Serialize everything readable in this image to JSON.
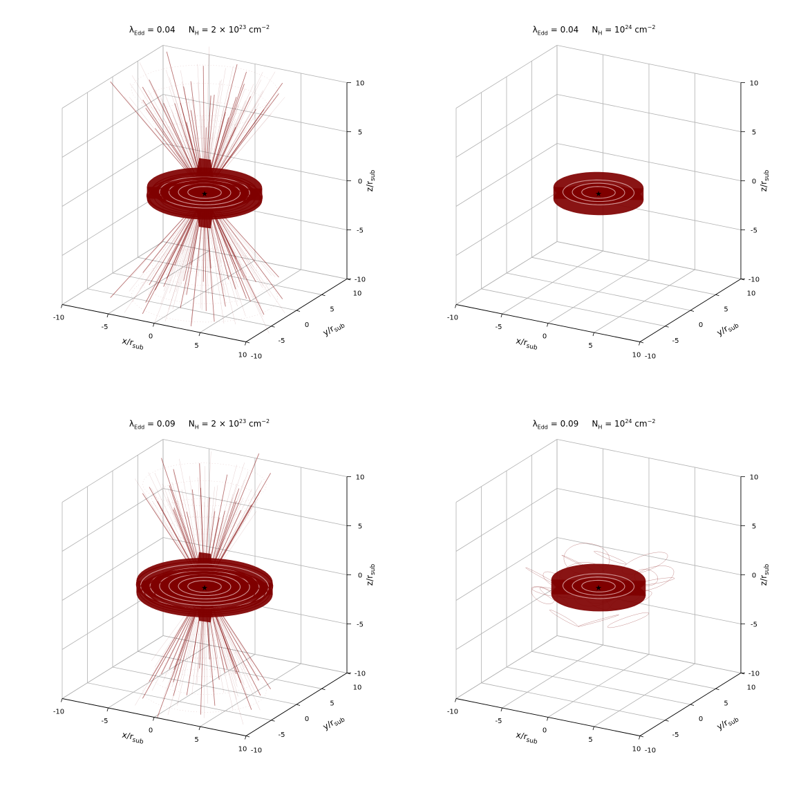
{
  "figure": {
    "axis_labels": {
      "x": "x/r",
      "x_sub": "sub",
      "y": "y/r",
      "y_sub": "sub",
      "z": "z/r",
      "z_sub": "sub"
    },
    "ticks": [
      "-10",
      "-5",
      "0",
      "5",
      "10"
    ]
  },
  "colors": {
    "trajectory": "#7f0000",
    "grid": "#b0b0b0",
    "pane": "#ffffff",
    "star": "#000000"
  },
  "chart_data": [
    {
      "type": "3d-trajectory",
      "title": "λEdd = 0.04     NH = 2 × 10^23 cm^-2",
      "title_parts": {
        "lambda": "λ",
        "lambda_sub": "Edd",
        "lambda_val": " = 0.04",
        "nh": "N",
        "nh_sub": "H",
        "nh_val": " = 2 × 10",
        "nh_exp": "23",
        "unit": " cm",
        "unit_exp": "−2"
      },
      "xlim": [
        -10,
        10
      ],
      "ylim": [
        -10,
        10
      ],
      "zlim": [
        -10,
        10
      ],
      "morphology": "disk-plus-biconical-outflow",
      "disk": {
        "inner_radius": 1,
        "outer_radius": 5.5,
        "thickness": 1.2
      },
      "outflow": {
        "half_opening_angle_deg": 30,
        "extent": 11,
        "density": "high"
      },
      "loops": "none",
      "central_source": "star marker at origin"
    },
    {
      "type": "3d-trajectory",
      "title": "λEdd = 0.04     NH = 10^24 cm^-2",
      "title_parts": {
        "lambda": "λ",
        "lambda_sub": "Edd",
        "lambda_val": " = 0.04",
        "nh": "N",
        "nh_sub": "H",
        "nh_val": " = 10",
        "nh_exp": "24",
        "unit": " cm",
        "unit_exp": "−2"
      },
      "xlim": [
        -10,
        10
      ],
      "ylim": [
        -10,
        10
      ],
      "zlim": [
        -10,
        10
      ],
      "morphology": "thin-disk-only",
      "disk": {
        "inner_radius": 1,
        "outer_radius": 4.3,
        "thickness": 1.2
      },
      "outflow": null,
      "loops": "none",
      "central_source": "star marker at origin"
    },
    {
      "type": "3d-trajectory",
      "title": "λEdd = 0.09     NH = 2 × 10^23 cm^-2",
      "title_parts": {
        "lambda": "λ",
        "lambda_sub": "Edd",
        "lambda_val": " = 0.09",
        "nh": "N",
        "nh_sub": "H",
        "nh_val": " = 2 × 10",
        "nh_exp": "23",
        "unit": " cm",
        "unit_exp": "−2"
      },
      "xlim": [
        -10,
        10
      ],
      "ylim": [
        -10,
        10
      ],
      "zlim": [
        -10,
        10
      ],
      "morphology": "disk-plus-biconical-outflow",
      "disk": {
        "inner_radius": 1,
        "outer_radius": 6.5,
        "thickness": 1.2
      },
      "outflow": {
        "half_opening_angle_deg": 26,
        "extent": 11,
        "density": "medium"
      },
      "loops": "none",
      "central_source": "star marker at origin"
    },
    {
      "type": "3d-trajectory",
      "title": "λEdd = 0.09     NH = 10^24 cm^-2",
      "title_parts": {
        "lambda": "λ",
        "lambda_sub": "Edd",
        "lambda_val": " = 0.09",
        "nh": "N",
        "nh_sub": "H",
        "nh_val": " = 10",
        "nh_exp": "24",
        "unit": " cm",
        "unit_exp": "−2"
      },
      "xlim": [
        -10,
        10
      ],
      "ylim": [
        -10,
        10
      ],
      "zlim": [
        -10,
        10
      ],
      "morphology": "thick-disk-with-scattered-loops",
      "disk": {
        "inner_radius": 1,
        "outer_radius": 4.5,
        "thickness": 1.5
      },
      "outflow": null,
      "loops": "scattered orbits extending to radius ~7",
      "central_source": "star marker at origin"
    }
  ]
}
